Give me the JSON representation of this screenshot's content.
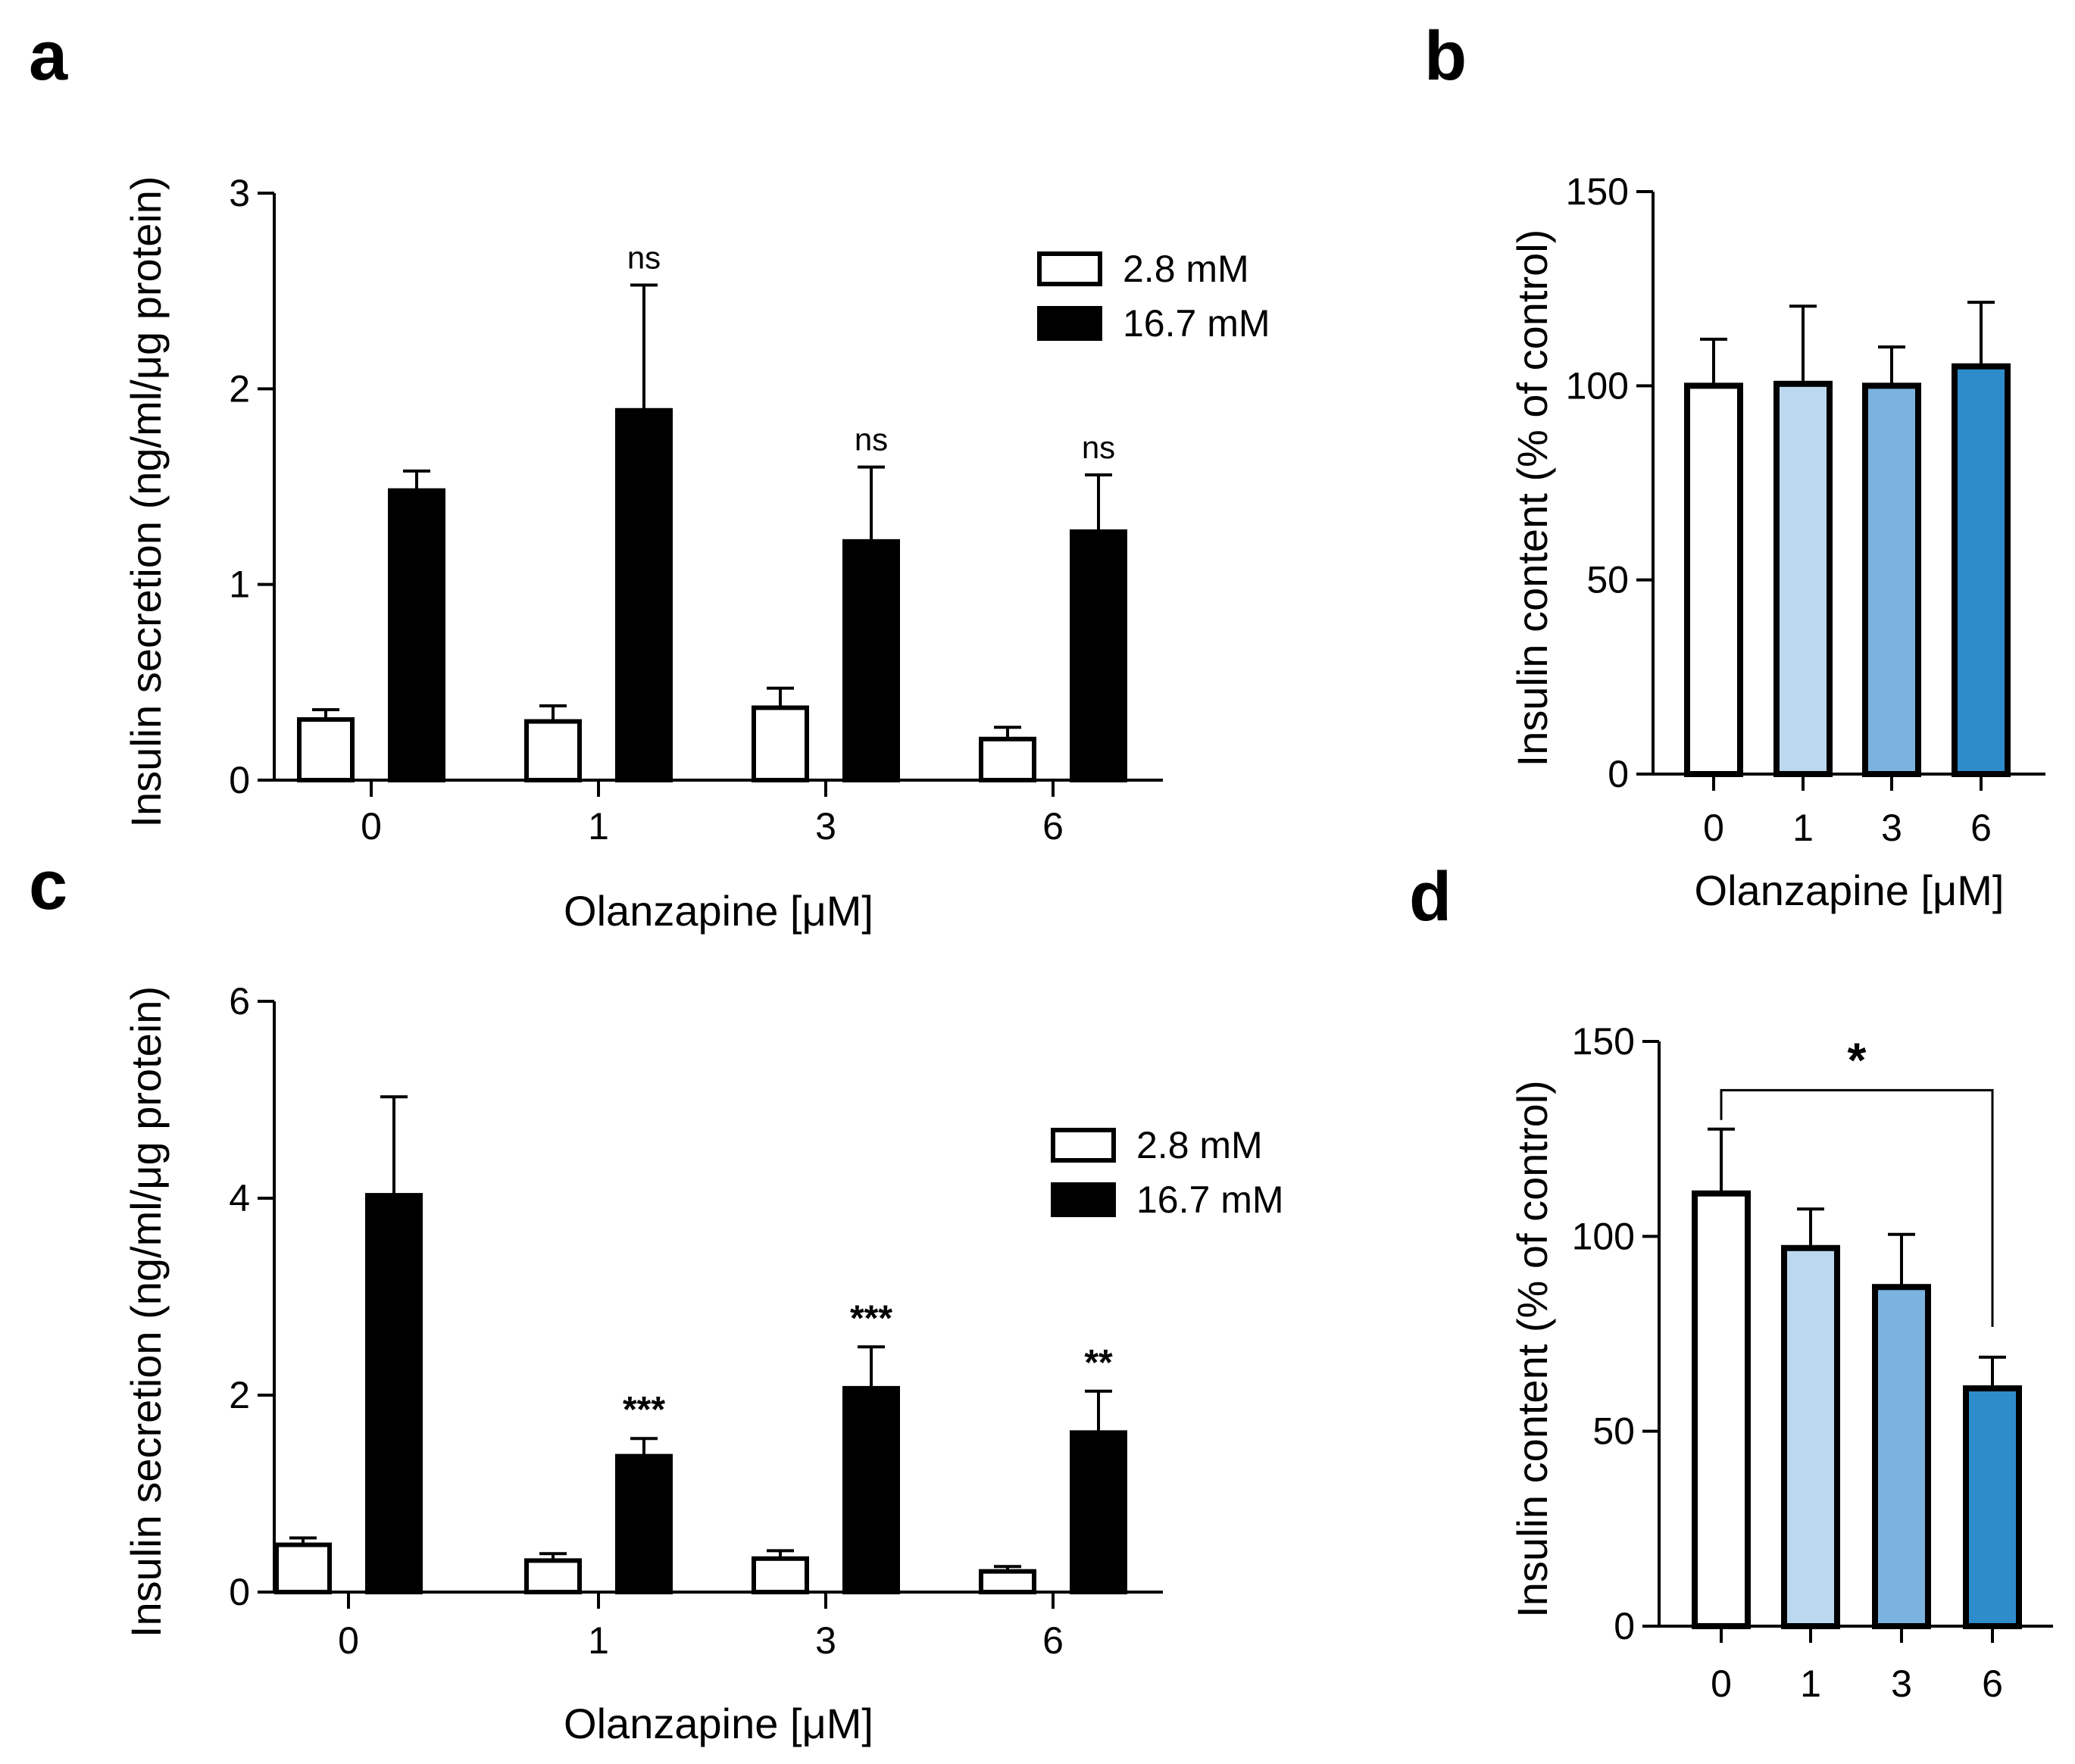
{
  "chart_data": [
    {
      "panel": "a",
      "type": "bar",
      "title": "",
      "xlabel": "Olanzapine [μM]",
      "ylabel": "Insulin secretion (ng/ml/μg protein)",
      "categories": [
        "0",
        "1",
        "3",
        "6"
      ],
      "ylim": [
        0,
        3
      ],
      "yticks": [
        "0",
        "1",
        "2",
        "3"
      ],
      "series": [
        {
          "name": "2.8 mM",
          "fill": "#ffffff",
          "values": [
            0.31,
            0.3,
            0.37,
            0.21
          ],
          "errors": [
            0.05,
            0.08,
            0.1,
            0.06
          ]
        },
        {
          "name": "16.7 mM",
          "fill": "#000000",
          "values": [
            1.48,
            1.89,
            1.22,
            1.27
          ],
          "errors": [
            0.1,
            0.64,
            0.38,
            0.29
          ]
        }
      ],
      "annotations": [
        {
          "category": "1",
          "label": "ns"
        },
        {
          "category": "3",
          "label": "ns"
        },
        {
          "category": "6",
          "label": "ns"
        }
      ],
      "legend_position": "top-right"
    },
    {
      "panel": "b",
      "type": "bar",
      "title": "",
      "xlabel": "Olanzapine [μM]",
      "ylabel": "Insulin content (% of control)",
      "categories": [
        "0",
        "1",
        "3",
        "6"
      ],
      "ylim": [
        0,
        150
      ],
      "yticks": [
        "0",
        "50",
        "100",
        "150"
      ],
      "values": [
        100,
        100.5,
        100,
        105
      ],
      "errors": [
        12,
        20,
        10,
        16.5
      ],
      "colors": [
        "#ffffff",
        "#bcd8ee",
        "#7ab3e0",
        "#2f8ccb"
      ]
    },
    {
      "panel": "c",
      "type": "bar",
      "title": "",
      "xlabel": "Olanzapine [μM]",
      "ylabel": "Insulin secretion (ng/ml/μg protein)",
      "categories": [
        "0",
        "1",
        "3",
        "6"
      ],
      "ylim": [
        0,
        6
      ],
      "yticks": [
        "0",
        "2",
        "4",
        "6"
      ],
      "series": [
        {
          "name": "2.8 mM",
          "fill": "#ffffff",
          "values": [
            0.48,
            0.32,
            0.34,
            0.21
          ],
          "errors": [
            0.07,
            0.07,
            0.08,
            0.05
          ]
        },
        {
          "name": "16.7 mM",
          "fill": "#000000",
          "values": [
            4.03,
            1.38,
            2.07,
            1.62
          ],
          "errors": [
            1.0,
            0.18,
            0.42,
            0.42
          ]
        }
      ],
      "annotations": [
        {
          "category": "1",
          "label": "***"
        },
        {
          "category": "3",
          "label": "***"
        },
        {
          "category": "6",
          "label": "**"
        }
      ],
      "legend_position": "top-right"
    },
    {
      "panel": "d",
      "type": "bar",
      "title": "",
      "xlabel": "",
      "ylabel": "Insulin content (% of control)",
      "categories": [
        "0",
        "1",
        "3",
        "6"
      ],
      "ylim": [
        0,
        150
      ],
      "yticks": [
        "0",
        "50",
        "100",
        "150"
      ],
      "values": [
        111,
        97,
        87,
        61
      ],
      "errors": [
        16.5,
        10,
        13.5,
        8
      ],
      "colors": [
        "#ffffff",
        "#bcd8ee",
        "#7ab3e0",
        "#2f8ccb"
      ],
      "significance": {
        "from": "0",
        "to": "6",
        "label": "*"
      }
    }
  ]
}
